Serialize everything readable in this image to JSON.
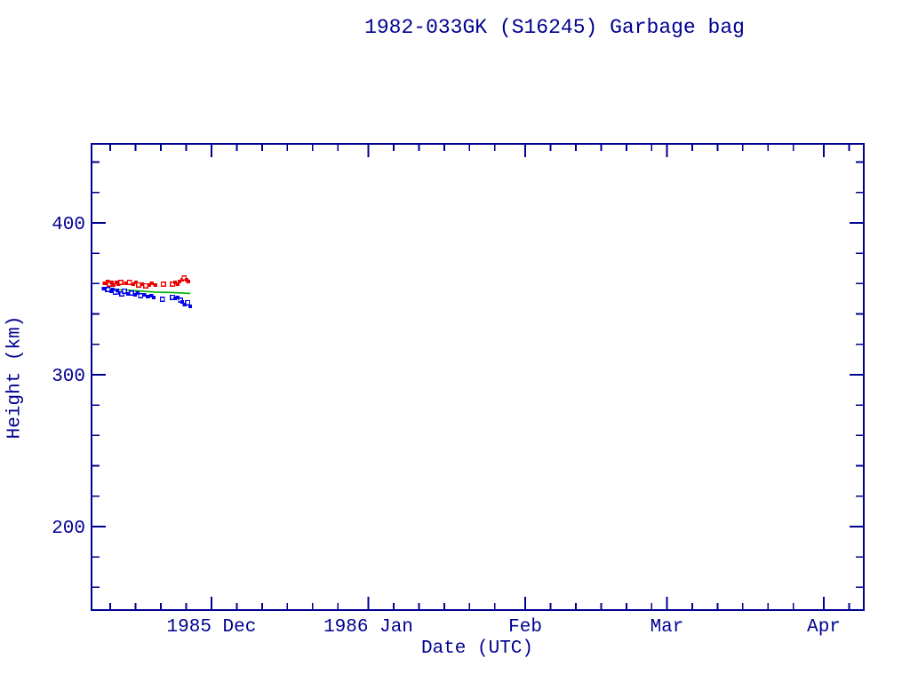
{
  "page": {
    "background": "#ffffff"
  },
  "colors": {
    "axes_and_text": "#000090",
    "apogee": "#ee0000",
    "perigee": "#0000ee",
    "mean": "#00b000",
    "open_marker_fill": "#ffffff"
  },
  "chart_data": {
    "type": "scatter",
    "title": "1982-033GK (S16245) Garbage bag",
    "xlabel": "Date (UTC)",
    "ylabel": "Height (km)",
    "grid": false,
    "legend": "none",
    "x_axis": {
      "unit": "days since 1985 Dec 1 00:00 UTC",
      "range_days": [
        -23.7,
        128.9
      ],
      "approx_date_span": [
        "1985 Nov 7",
        "1986 Apr 9"
      ],
      "major_ticks": [
        {
          "day": 0,
          "label": "1985 Dec"
        },
        {
          "day": 31,
          "label": "1986 Jan"
        },
        {
          "day": 62,
          "label": "Feb"
        },
        {
          "day": 90,
          "label": "Mar"
        },
        {
          "day": 121,
          "label": "Apr"
        }
      ],
      "minor_tick_days": [
        -20,
        -15,
        -10,
        -5,
        5,
        10,
        15,
        20,
        25,
        36,
        41,
        46,
        51,
        56,
        67,
        72,
        77,
        82,
        87,
        95,
        100,
        105,
        110,
        115,
        126
      ]
    },
    "y_axis": {
      "unit": "km",
      "range": [
        145,
        452
      ],
      "major_ticks": [
        {
          "value": 200,
          "label": "200"
        },
        {
          "value": 300,
          "label": "300"
        },
        {
          "value": 400,
          "label": "400"
        }
      ],
      "minor_tick_values": [
        160,
        180,
        220,
        240,
        260,
        280,
        320,
        340,
        360,
        380,
        420,
        440
      ]
    },
    "point_format": [
      "days_since_1985_Dec_1",
      "height_km",
      "open_marker_1_or_0"
    ],
    "series": [
      {
        "name": "mean height",
        "style": "line",
        "color_key": "mean",
        "points": [
          [
            -21.4,
            356.4
          ],
          [
            -16.3,
            355.6
          ],
          [
            -11.1,
            354.4
          ],
          [
            -7.6,
            354.1
          ],
          [
            -4.2,
            353.5
          ]
        ]
      },
      {
        "name": "apogee height",
        "style": "square-markers",
        "color_key": "apogee",
        "points": [
          [
            -21.1,
            360.2,
            0
          ],
          [
            -20.5,
            361.4,
            0
          ],
          [
            -20.2,
            359.6,
            1
          ],
          [
            -19.7,
            360.8,
            0
          ],
          [
            -19.3,
            359.1,
            0
          ],
          [
            -18.8,
            360.8,
            0
          ],
          [
            -18.4,
            359.6,
            0
          ],
          [
            -17.9,
            360.8,
            1
          ],
          [
            -16.9,
            360.2,
            0
          ],
          [
            -16.2,
            360.8,
            1
          ],
          [
            -15.5,
            359.6,
            0
          ],
          [
            -14.9,
            360.8,
            0
          ],
          [
            -14.4,
            359.1,
            1
          ],
          [
            -13.7,
            359.6,
            0
          ],
          [
            -13.0,
            358.5,
            1
          ],
          [
            -12.3,
            359.1,
            0
          ],
          [
            -11.8,
            360.2,
            0
          ],
          [
            -11.1,
            359.1,
            0
          ],
          [
            -9.5,
            359.6,
            1
          ],
          [
            -7.7,
            359.6,
            1
          ],
          [
            -7.2,
            360.8,
            0
          ],
          [
            -6.7,
            359.6,
            0
          ],
          [
            -6.3,
            361.4,
            0
          ],
          [
            -5.8,
            362.6,
            0
          ],
          [
            -5.4,
            363.7,
            1
          ],
          [
            -4.9,
            362.6,
            0
          ],
          [
            -4.6,
            361.4,
            0
          ]
        ]
      },
      {
        "name": "perigee height",
        "style": "square-markers",
        "color_key": "perigee",
        "points": [
          [
            -21.3,
            356.7,
            0
          ],
          [
            -20.7,
            355.6,
            0
          ],
          [
            -20.4,
            356.1,
            1
          ],
          [
            -19.8,
            355.0,
            0
          ],
          [
            -19.5,
            356.1,
            0
          ],
          [
            -19.0,
            354.4,
            1
          ],
          [
            -18.6,
            355.6,
            0
          ],
          [
            -18.1,
            353.8,
            0
          ],
          [
            -17.7,
            353.2,
            1
          ],
          [
            -17.2,
            355.0,
            1
          ],
          [
            -16.5,
            353.2,
            0
          ],
          [
            -15.8,
            353.8,
            1
          ],
          [
            -15.1,
            352.6,
            0
          ],
          [
            -14.6,
            353.8,
            0
          ],
          [
            -14.0,
            352.0,
            1
          ],
          [
            -13.3,
            352.6,
            0
          ],
          [
            -12.6,
            351.5,
            0
          ],
          [
            -11.9,
            352.0,
            0
          ],
          [
            -11.4,
            350.9,
            0
          ],
          [
            -9.7,
            349.7,
            1
          ],
          [
            -7.7,
            350.9,
            1
          ],
          [
            -7.2,
            350.3,
            0
          ],
          [
            -6.7,
            350.9,
            0
          ],
          [
            -6.1,
            349.1,
            1
          ],
          [
            -5.8,
            348.0,
            0
          ],
          [
            -5.3,
            346.2,
            0
          ],
          [
            -4.7,
            347.4,
            1
          ],
          [
            -4.2,
            345.0,
            0
          ]
        ]
      }
    ]
  }
}
